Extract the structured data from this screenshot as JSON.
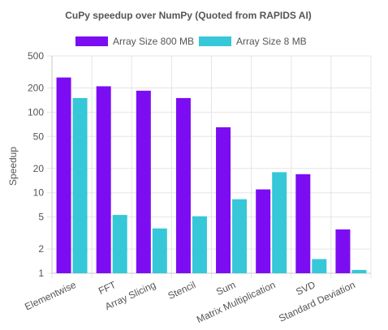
{
  "chart_data": {
    "type": "bar",
    "title": "CuPy speedup over NumPy (Quoted from RAPIDS AI)",
    "ylabel": "Speedup",
    "xlabel": "",
    "yscale": "log",
    "ylim": [
      1,
      500
    ],
    "yticks": [
      1,
      2,
      5,
      10,
      20,
      50,
      100,
      200,
      500
    ],
    "grid": true,
    "legend_position": "top",
    "categories": [
      "Elementwise",
      "FFT",
      "Array Slicing",
      "Stencil",
      "Sum",
      "Matrix Multiplication",
      "SVD",
      "Standard Deviation"
    ],
    "series": [
      {
        "name": "Array Size 800 MB",
        "color": "#7c0df2",
        "values": [
          270,
          210,
          185,
          150,
          65,
          11,
          17,
          3.5
        ]
      },
      {
        "name": "Array Size 8 MB",
        "color": "#36c7d8",
        "values": [
          150,
          5.3,
          3.6,
          5.1,
          8.3,
          18,
          1.5,
          1.1
        ]
      }
    ]
  }
}
